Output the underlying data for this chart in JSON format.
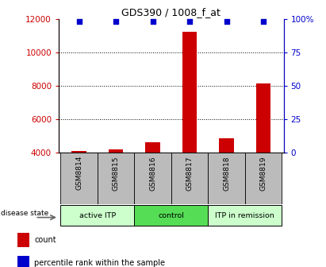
{
  "title": "GDS390 / 1008_f_at",
  "samples": [
    "GSM8814",
    "GSM8815",
    "GSM8816",
    "GSM8817",
    "GSM8818",
    "GSM8819"
  ],
  "counts": [
    4050,
    4150,
    4600,
    11200,
    4850,
    8100
  ],
  "percentile_left_values": [
    11820,
    11820,
    11820,
    11820,
    11820,
    11820
  ],
  "ylim_left": [
    4000,
    12000
  ],
  "ylim_right": [
    0,
    100
  ],
  "left_ticks": [
    4000,
    6000,
    8000,
    10000,
    12000
  ],
  "right_ticks": [
    0,
    25,
    50,
    75,
    100
  ],
  "right_tick_labels": [
    "0",
    "25",
    "50",
    "75",
    "100%"
  ],
  "groups": [
    {
      "label": "active ITP",
      "start": 0,
      "end": 1,
      "color": "#ccffcc"
    },
    {
      "label": "control",
      "start": 2,
      "end": 3,
      "color": "#55dd55"
    },
    {
      "label": "ITP in remission",
      "start": 4,
      "end": 5,
      "color": "#ccffcc"
    }
  ],
  "bar_color": "#cc0000",
  "dot_color": "#0000cc",
  "left_tick_color": "#cc0000",
  "right_tick_color": "#0000cc",
  "disease_state_label": "disease state",
  "legend_count_label": "count",
  "legend_percentile_label": "percentile rank within the sample",
  "grid_ticks": [
    6000,
    8000,
    10000
  ],
  "xtick_bg_color": "#bbbbbb",
  "bar_width": 0.4,
  "figsize": [
    4.11,
    3.36
  ],
  "dpi": 100
}
